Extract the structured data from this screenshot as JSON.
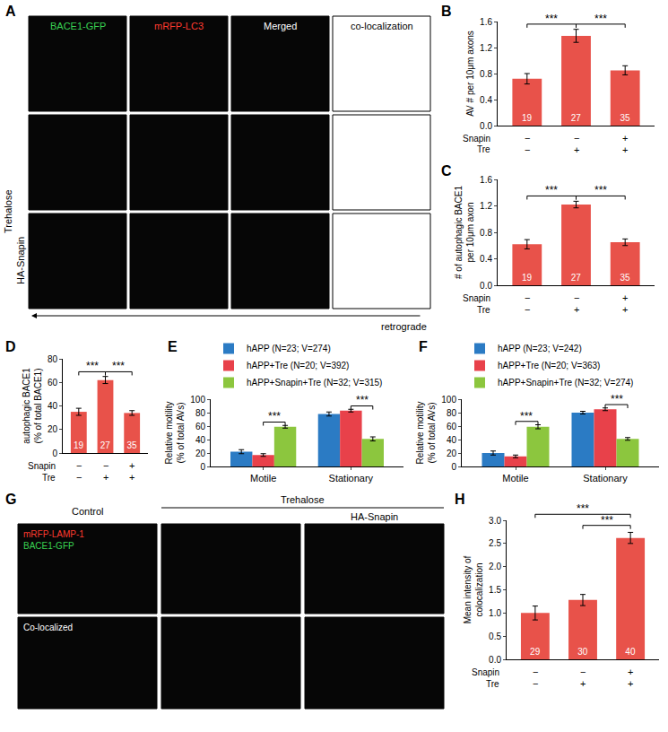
{
  "image_panels": [
    {
      "panel": "A",
      "columns": [
        {
          "text": "BACE1-GFP",
          "color": "#39d353"
        },
        {
          "text": "mRFP-LC3",
          "color": "#ff3b30"
        },
        {
          "text": "Merged",
          "color": "#ffffff"
        },
        {
          "text": "co-localization",
          "color": "#000000"
        }
      ],
      "row_labels": [
        {
          "text": "Trehalose"
        },
        {
          "text": "HA-Snapin"
        }
      ],
      "arrow_label": "retrograde"
    },
    {
      "panel": "G",
      "headers": [
        {
          "text": "Control"
        },
        {
          "text": "Trehalose"
        },
        {
          "text": "HA-Snapin"
        }
      ],
      "channel_labels": [
        {
          "text": "mRFP-LAMP-1",
          "color": "#ff3b30"
        },
        {
          "text": "BACE1-GFP",
          "color": "#39d353"
        }
      ],
      "row_label": "Co-localized"
    }
  ],
  "chart_data": [
    {
      "panel": "B",
      "type": "bar",
      "categories": [
        null,
        null,
        null
      ],
      "values": [
        0.72,
        1.38,
        0.85
      ],
      "errors": [
        0.08,
        0.1,
        0.07
      ],
      "n": [
        19,
        27,
        35
      ],
      "color": "#e8524a",
      "ylabel": [
        "AV # per 10μm axons"
      ],
      "ylim": [
        0,
        1.6
      ],
      "yticks": [
        {
          "value": 0,
          "label": "0.0"
        },
        0.4,
        0.8,
        1.2,
        1.6
      ],
      "conditions": [
        {
          "name": "Snapin",
          "values": [
            "−",
            "−",
            "+"
          ]
        },
        {
          "name": "Tre",
          "values": [
            "−",
            "+",
            "+"
          ]
        }
      ],
      "significance": [
        {
          "from": 0,
          "to": 1,
          "label": "***"
        },
        {
          "from": 1,
          "to": 2,
          "label": "***"
        }
      ]
    },
    {
      "panel": "C",
      "type": "bar",
      "categories": [
        null,
        null,
        null
      ],
      "values": [
        0.62,
        1.22,
        0.65
      ],
      "errors": [
        0.07,
        0.05,
        0.05
      ],
      "n": [
        19,
        27,
        35
      ],
      "color": "#e8524a",
      "ylabel": [
        "# of autophagic BACE1",
        "per 10μm axon"
      ],
      "ylim": [
        0,
        1.6
      ],
      "yticks": [
        {
          "value": 0,
          "label": "0.0"
        },
        0.4,
        0.8,
        1.2,
        1.6
      ],
      "conditions": [
        {
          "name": "Snapin",
          "values": [
            "−",
            "−",
            "+"
          ]
        },
        {
          "name": "Tre",
          "values": [
            "−",
            "+",
            "+"
          ]
        }
      ],
      "significance": [
        {
          "from": 0,
          "to": 1,
          "label": "***"
        },
        {
          "from": 1,
          "to": 2,
          "label": "***"
        }
      ]
    },
    {
      "panel": "D",
      "type": "bar",
      "categories": [
        null,
        null,
        null
      ],
      "values": [
        35,
        62,
        34
      ],
      "errors": [
        3,
        3,
        2
      ],
      "n": [
        19,
        27,
        35
      ],
      "color": "#e8524a",
      "ylabel": [
        "autophagic BACE1",
        "(% of total BACE1)"
      ],
      "ylim": [
        0,
        80
      ],
      "yticks": [
        0,
        20,
        40,
        60,
        80
      ],
      "conditions": [
        {
          "name": "Snapin",
          "values": [
            "−",
            "−",
            "+"
          ]
        },
        {
          "name": "Tre",
          "values": [
            "−",
            "+",
            "+"
          ]
        }
      ],
      "significance": [
        {
          "from": 0,
          "to": 1,
          "label": "***"
        },
        {
          "from": 1,
          "to": 2,
          "label": "***"
        }
      ]
    },
    {
      "panel": "E",
      "type": "bar",
      "categories": [
        "Motile",
        "Stationary"
      ],
      "legend": "top",
      "series": [
        {
          "name": "hAPP (N=23; V=274)",
          "color": "#2b7bc4",
          "values": [
            22,
            78
          ],
          "errors": [
            3,
            3
          ]
        },
        {
          "name": "hAPP+Tre (N=20; V=392)",
          "color": "#e8414a",
          "values": [
            17,
            83
          ],
          "errors": [
            2,
            2
          ]
        },
        {
          "name": "hAPP+Snapin+Tre (N=32; V=315)",
          "color": "#8cc63e",
          "values": [
            59,
            41
          ],
          "errors": [
            2,
            3
          ]
        }
      ],
      "ylabel": [
        "Relative motility",
        "(% of total AVs)"
      ],
      "ylim": [
        0,
        100
      ],
      "yticks": [
        0,
        20,
        40,
        60,
        80,
        100
      ],
      "significance": [
        {
          "category": 0,
          "from": 1,
          "to": 2,
          "label": "***"
        },
        {
          "category": 1,
          "from": 1,
          "to": 2,
          "label": "***"
        }
      ]
    },
    {
      "panel": "F",
      "type": "bar",
      "categories": [
        "Motile",
        "Stationary"
      ],
      "legend": "top",
      "series": [
        {
          "name": "hAPP (N=23; V=242)",
          "color": "#2b7bc4",
          "values": [
            20,
            80
          ],
          "errors": [
            3,
            2
          ]
        },
        {
          "name": "hAPP+Tre (N=20; V=363)",
          "color": "#e8414a",
          "values": [
            15,
            85
          ],
          "errors": [
            2,
            2
          ]
        },
        {
          "name": "hAPP+Snapin+Tre (N=32; V=274)",
          "color": "#8cc63e",
          "values": [
            59,
            41
          ],
          "errors": [
            3,
            2
          ]
        }
      ],
      "ylabel": [
        "Relative motility",
        "(% of total AVs)"
      ],
      "ylim": [
        0,
        100
      ],
      "yticks": [
        0,
        20,
        40,
        60,
        80,
        100
      ],
      "significance": [
        {
          "category": 0,
          "from": 1,
          "to": 2,
          "label": "***"
        },
        {
          "category": 1,
          "from": 1,
          "to": 2,
          "label": "***"
        }
      ]
    },
    {
      "panel": "H",
      "type": "bar",
      "categories": [
        null,
        null,
        null
      ],
      "values": [
        1.0,
        1.28,
        2.62
      ],
      "errors": [
        0.15,
        0.12,
        0.12
      ],
      "n": [
        29,
        30,
        40
      ],
      "color": "#e8524a",
      "ylabel": [
        "Mean intensity of",
        "colocalization"
      ],
      "ylim": [
        0,
        3.0
      ],
      "yticks": [
        {
          "value": 0,
          "label": "0.0"
        },
        0.5,
        {
          "value": 1,
          "label": "1.0"
        },
        1.5,
        {
          "value": 2,
          "label": "2.0"
        },
        2.5,
        {
          "value": 3,
          "label": "3.0"
        }
      ],
      "conditions": [
        {
          "name": "Snapin",
          "values": [
            "−",
            "−",
            "+"
          ]
        },
        {
          "name": "Tre",
          "values": [
            "−",
            "+",
            "+"
          ]
        }
      ],
      "significance": [
        {
          "from": 1,
          "to": 2,
          "label": "***"
        },
        {
          "from": 0,
          "to": 2,
          "label": "***"
        }
      ]
    }
  ]
}
